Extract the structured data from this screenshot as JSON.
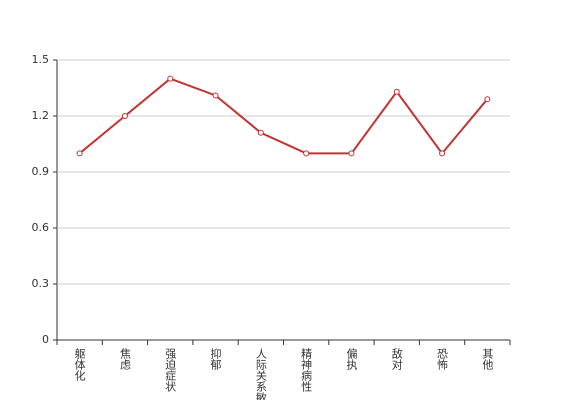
{
  "chart_data": {
    "type": "line",
    "categories": [
      "躯体化",
      "焦虑",
      "强迫症状",
      "抑郁",
      "人际关系敏感",
      "精神病性",
      "偏执",
      "敌对",
      "恐怖",
      "其他"
    ],
    "values": [
      1.0,
      1.2,
      1.4,
      1.31,
      1.11,
      1.0,
      1.0,
      1.33,
      1.0,
      1.29
    ],
    "color": "#c23531",
    "ylim": [
      0,
      1.5
    ],
    "yticks": [
      0,
      0.3,
      0.6,
      0.9,
      1.2,
      1.5
    ],
    "grid": true
  }
}
